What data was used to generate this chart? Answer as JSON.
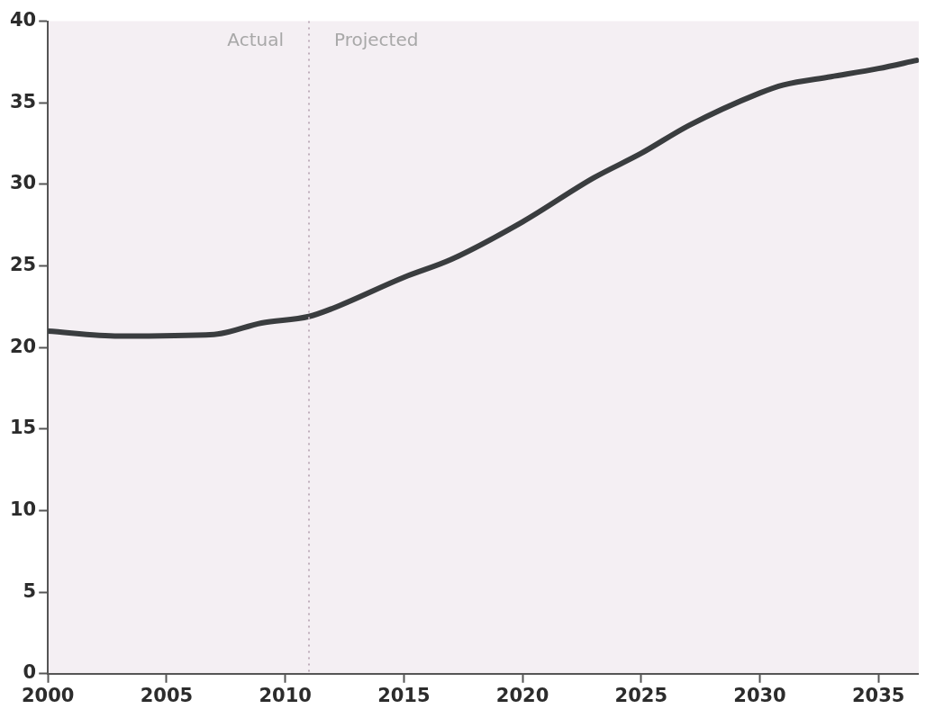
{
  "chart_data": {
    "type": "line",
    "x": [
      2000,
      2003,
      2007,
      2009,
      2011,
      2012,
      2015,
      2017,
      2020,
      2023,
      2025,
      2027,
      2030,
      2031,
      2033,
      2035,
      2036.6
    ],
    "series": [
      {
        "color": "#3a3d3f",
        "values": [
          21.0,
          20.7,
          20.8,
          21.5,
          21.9,
          22.4,
          24.3,
          25.4,
          27.7,
          30.4,
          31.9,
          33.6,
          35.6,
          36.1,
          36.6,
          37.1,
          37.6
        ]
      }
    ],
    "xlim": [
      2000,
      2036.7
    ],
    "xticks": [
      2000,
      2005,
      2010,
      2015,
      2020,
      2025,
      2030,
      2035
    ],
    "ylim": [
      0,
      40
    ],
    "yticks": [
      0,
      5,
      10,
      15,
      20,
      25,
      30,
      35,
      40
    ],
    "ref_lines": [
      {
        "axis": "x",
        "value": 2011,
        "color": "#bfaebb",
        "line_style": "dotted"
      }
    ],
    "annotations": [
      "Actual",
      "Projected"
    ],
    "grid": false,
    "legend": false,
    "marker": "none",
    "line_style": "solid"
  }
}
